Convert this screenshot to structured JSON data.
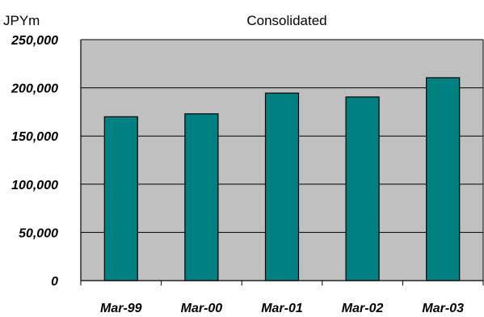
{
  "chart_data": {
    "type": "bar",
    "title": "Consolidated",
    "unit_label": "JPYm",
    "categories": [
      "Mar-99",
      "Mar-00",
      "Mar-01",
      "Mar-02",
      "Mar-03"
    ],
    "values": [
      170000,
      173000,
      194500,
      190500,
      210500
    ],
    "ylim": [
      0,
      250000
    ],
    "yticks": [
      0,
      50000,
      100000,
      150000,
      200000,
      250000
    ],
    "ytick_labels": [
      "0",
      "50,000",
      "100,000",
      "150,000",
      "200,000",
      "250,000"
    ],
    "grid": "horizontal",
    "legend": "none",
    "colors": {
      "bar": "#008080",
      "plot_background": "#c0c0c0",
      "axis": "#000000"
    }
  }
}
